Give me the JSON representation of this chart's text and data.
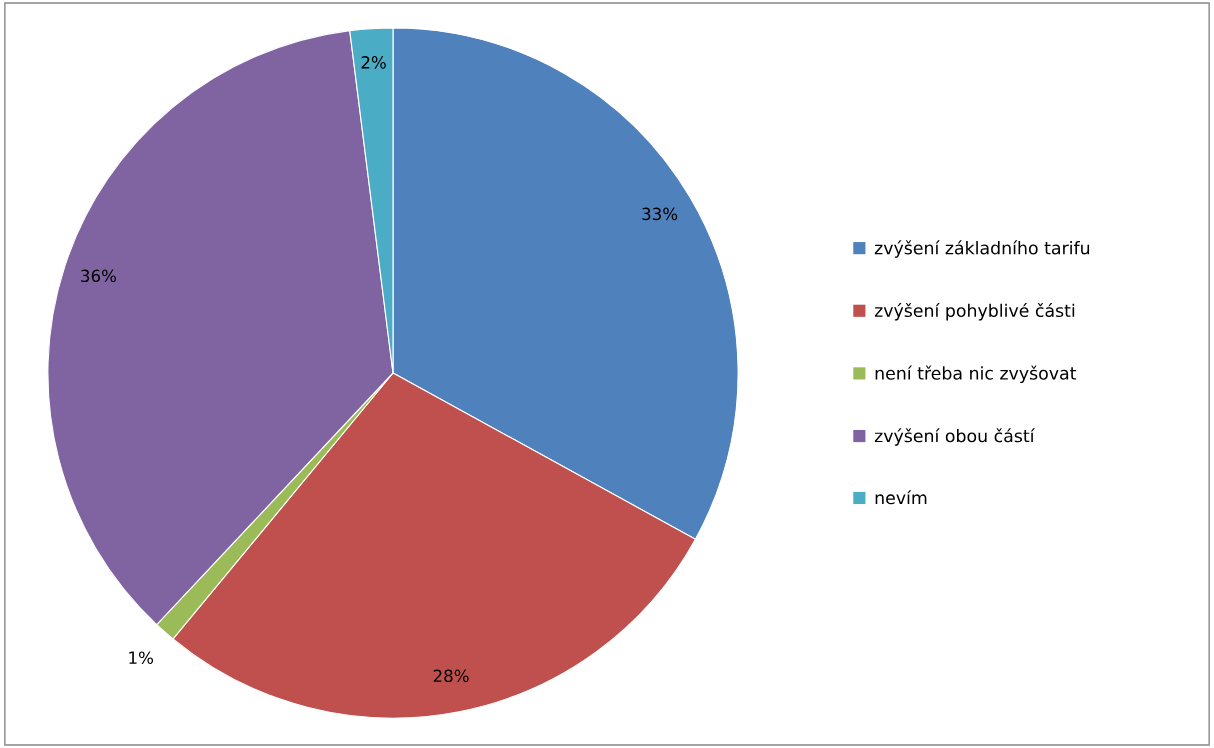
{
  "chart_data": {
    "type": "pie",
    "categories": [
      "zvýšení základního tarifu",
      "zvýšení pohyblivé části",
      "není třeba nic zvyšovat",
      "zvýšení obou částí",
      "nevím"
    ],
    "values": [
      33,
      28,
      1,
      36,
      2
    ],
    "colors": [
      "#4f81bd",
      "#c0504d",
      "#9bbb59",
      "#8064a2",
      "#4bacc6"
    ],
    "value_labels": [
      "33%",
      "28%",
      "1%",
      "36%",
      "2%"
    ],
    "legend": "right"
  }
}
